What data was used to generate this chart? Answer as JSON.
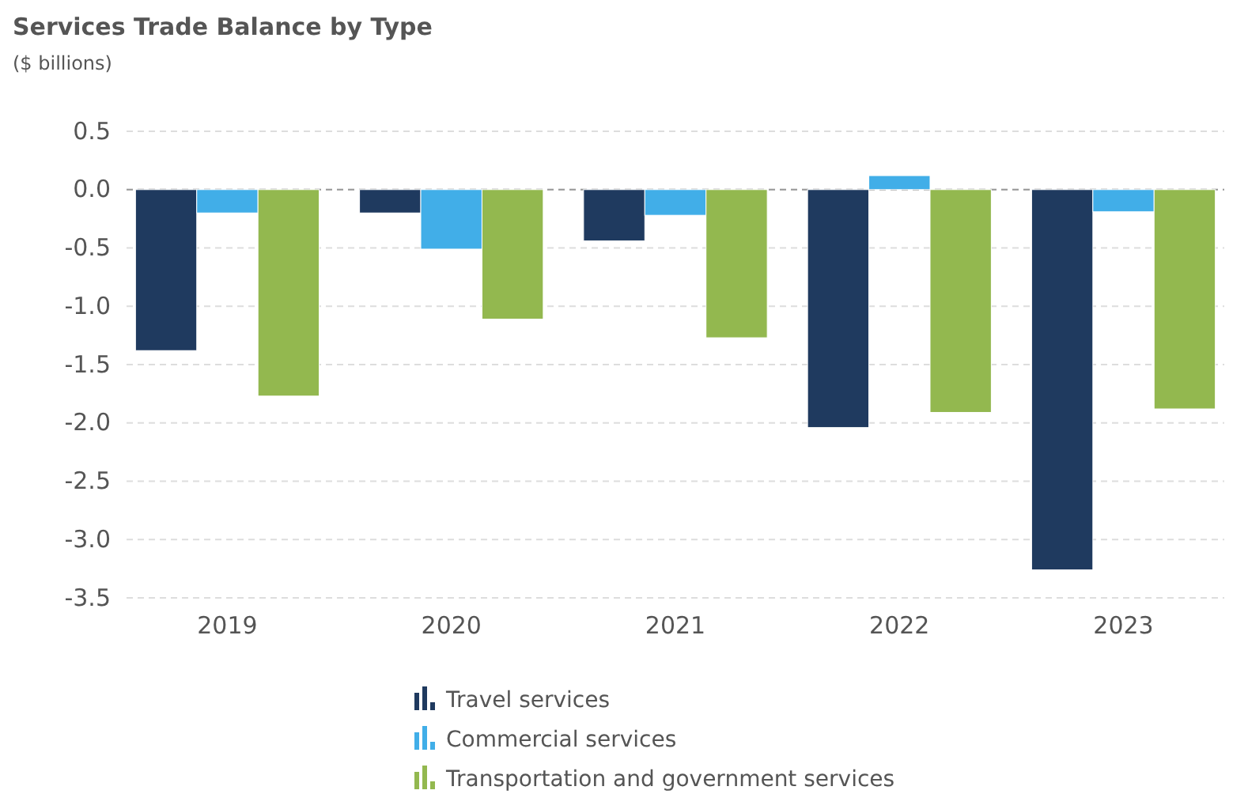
{
  "chart_data": {
    "type": "bar",
    "title": "Services Trade Balance by Type",
    "subtitle": "($ billions)",
    "categories": [
      "2019",
      "2020",
      "2021",
      "2022",
      "2023"
    ],
    "series": [
      {
        "name": "Travel services",
        "color": "#1f3a5f",
        "values": [
          -1.38,
          -0.2,
          -0.44,
          -2.04,
          -3.26
        ]
      },
      {
        "name": "Commercial services",
        "color": "#41aee8",
        "values": [
          -0.2,
          -0.51,
          -0.22,
          0.12,
          -0.19
        ]
      },
      {
        "name": "Transportation and government services",
        "color": "#93b84f",
        "values": [
          -1.77,
          -1.11,
          -1.27,
          -1.91,
          -1.88
        ]
      }
    ],
    "ylim": [
      -3.5,
      0.5
    ],
    "yticks": [
      {
        "value": 0.5,
        "label": "0.5"
      },
      {
        "value": 0,
        "label": "0.0"
      },
      {
        "value": -0.5,
        "label": "-0.5"
      },
      {
        "value": -1,
        "label": "-1.0"
      },
      {
        "value": -1.5,
        "label": "-1.5"
      },
      {
        "value": -2,
        "label": "-2.0"
      },
      {
        "value": -2.5,
        "label": "-2.5"
      },
      {
        "value": -3,
        "label": "-3.0"
      },
      {
        "value": -3.5,
        "label": "-3.5"
      }
    ],
    "ref_lines": [
      {
        "axis": "y",
        "value": 0,
        "color": "#999999",
        "line_style": "dashed"
      }
    ],
    "grid": "y",
    "legend": "bottom"
  }
}
